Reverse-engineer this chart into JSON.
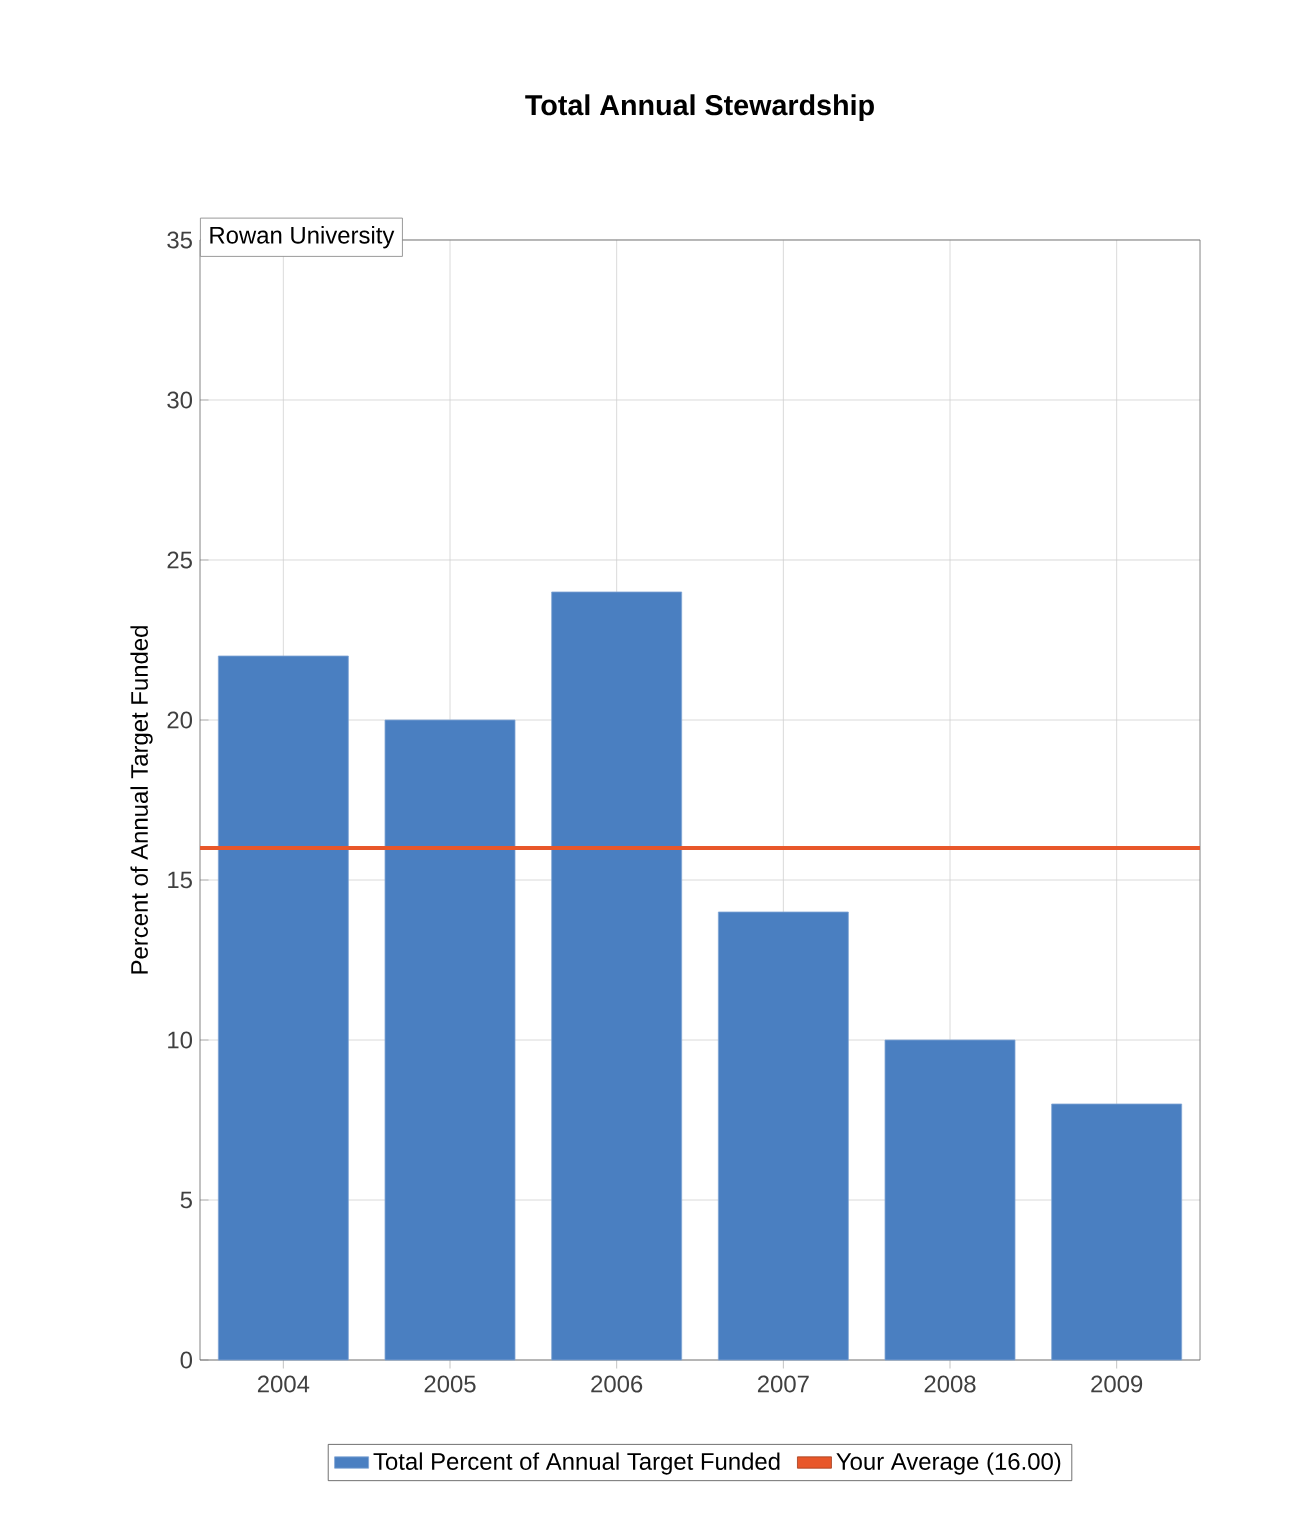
{
  "chart_data": {
    "type": "bar",
    "title": "Total Annual Stewardship",
    "subtitle": "Rowan University",
    "ylabel": "Percent of Annual Target Funded",
    "categories": [
      "2004",
      "2005",
      "2006",
      "2007",
      "2008",
      "2009"
    ],
    "series": [
      {
        "name": "Total Percent of Annual Target Funded",
        "color": "#4a7fc1",
        "values": [
          22,
          20,
          24,
          14,
          10,
          8
        ]
      }
    ],
    "ylim": [
      0,
      35
    ],
    "yticks": [
      0,
      5,
      10,
      15,
      20,
      25,
      30,
      35
    ],
    "grid": true,
    "legend": "bottom",
    "ref_lines": [
      {
        "axis": "y",
        "value": 16,
        "label": "Your Average (16.00)",
        "color": "#e8572a"
      }
    ]
  }
}
